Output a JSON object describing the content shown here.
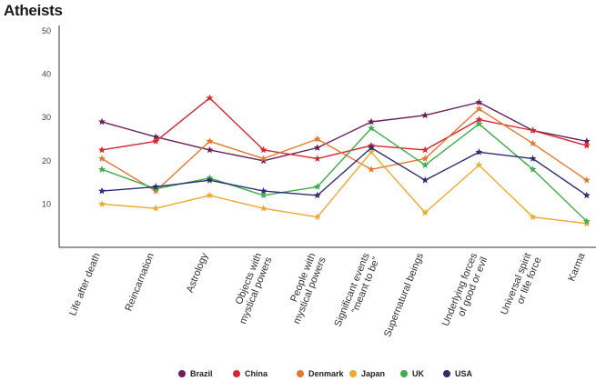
{
  "chart_data": {
    "type": "line",
    "title": "Atheists",
    "xlabel": "",
    "ylabel": "",
    "ylim": [
      0,
      50
    ],
    "yticks": [
      10,
      20,
      30,
      40,
      50
    ],
    "grid": false,
    "legend_position": "bottom",
    "categories": [
      "Life after death",
      "Reincarnation",
      "Astrology",
      "Objects with mystical powers",
      "People with mystical powers",
      "Significant events \"meant to be\"",
      "Supernatural beings",
      "Underlying forces of good or evil",
      "Universal spirit or life force",
      "Karma"
    ],
    "series": [
      {
        "name": "Brazil",
        "color": "#6b1e5a",
        "values": [
          29,
          25.5,
          22.5,
          20,
          23,
          29,
          30.5,
          33.5,
          27,
          24.5
        ]
      },
      {
        "name": "China",
        "color": "#d9262e",
        "values": [
          22.5,
          24.5,
          34.5,
          22.5,
          20.5,
          23.5,
          22.5,
          29.5,
          27,
          23.5
        ]
      },
      {
        "name": "Denmark",
        "color": "#e8762b",
        "values": [
          20.5,
          13,
          24.5,
          20.5,
          25,
          18,
          20.5,
          32,
          24,
          15.5
        ]
      },
      {
        "name": "Japan",
        "color": "#f0a92c",
        "values": [
          10,
          9,
          12,
          9,
          7,
          22,
          8,
          19,
          7,
          5.5
        ]
      },
      {
        "name": "UK",
        "color": "#3cae4a",
        "values": [
          18,
          13.5,
          16,
          12,
          14,
          27.5,
          19,
          28.5,
          18,
          6
        ]
      },
      {
        "name": "USA",
        "color": "#2b2d75",
        "values": [
          13,
          14,
          15.5,
          13,
          12,
          23,
          15.5,
          22,
          20.5,
          12
        ]
      }
    ]
  }
}
